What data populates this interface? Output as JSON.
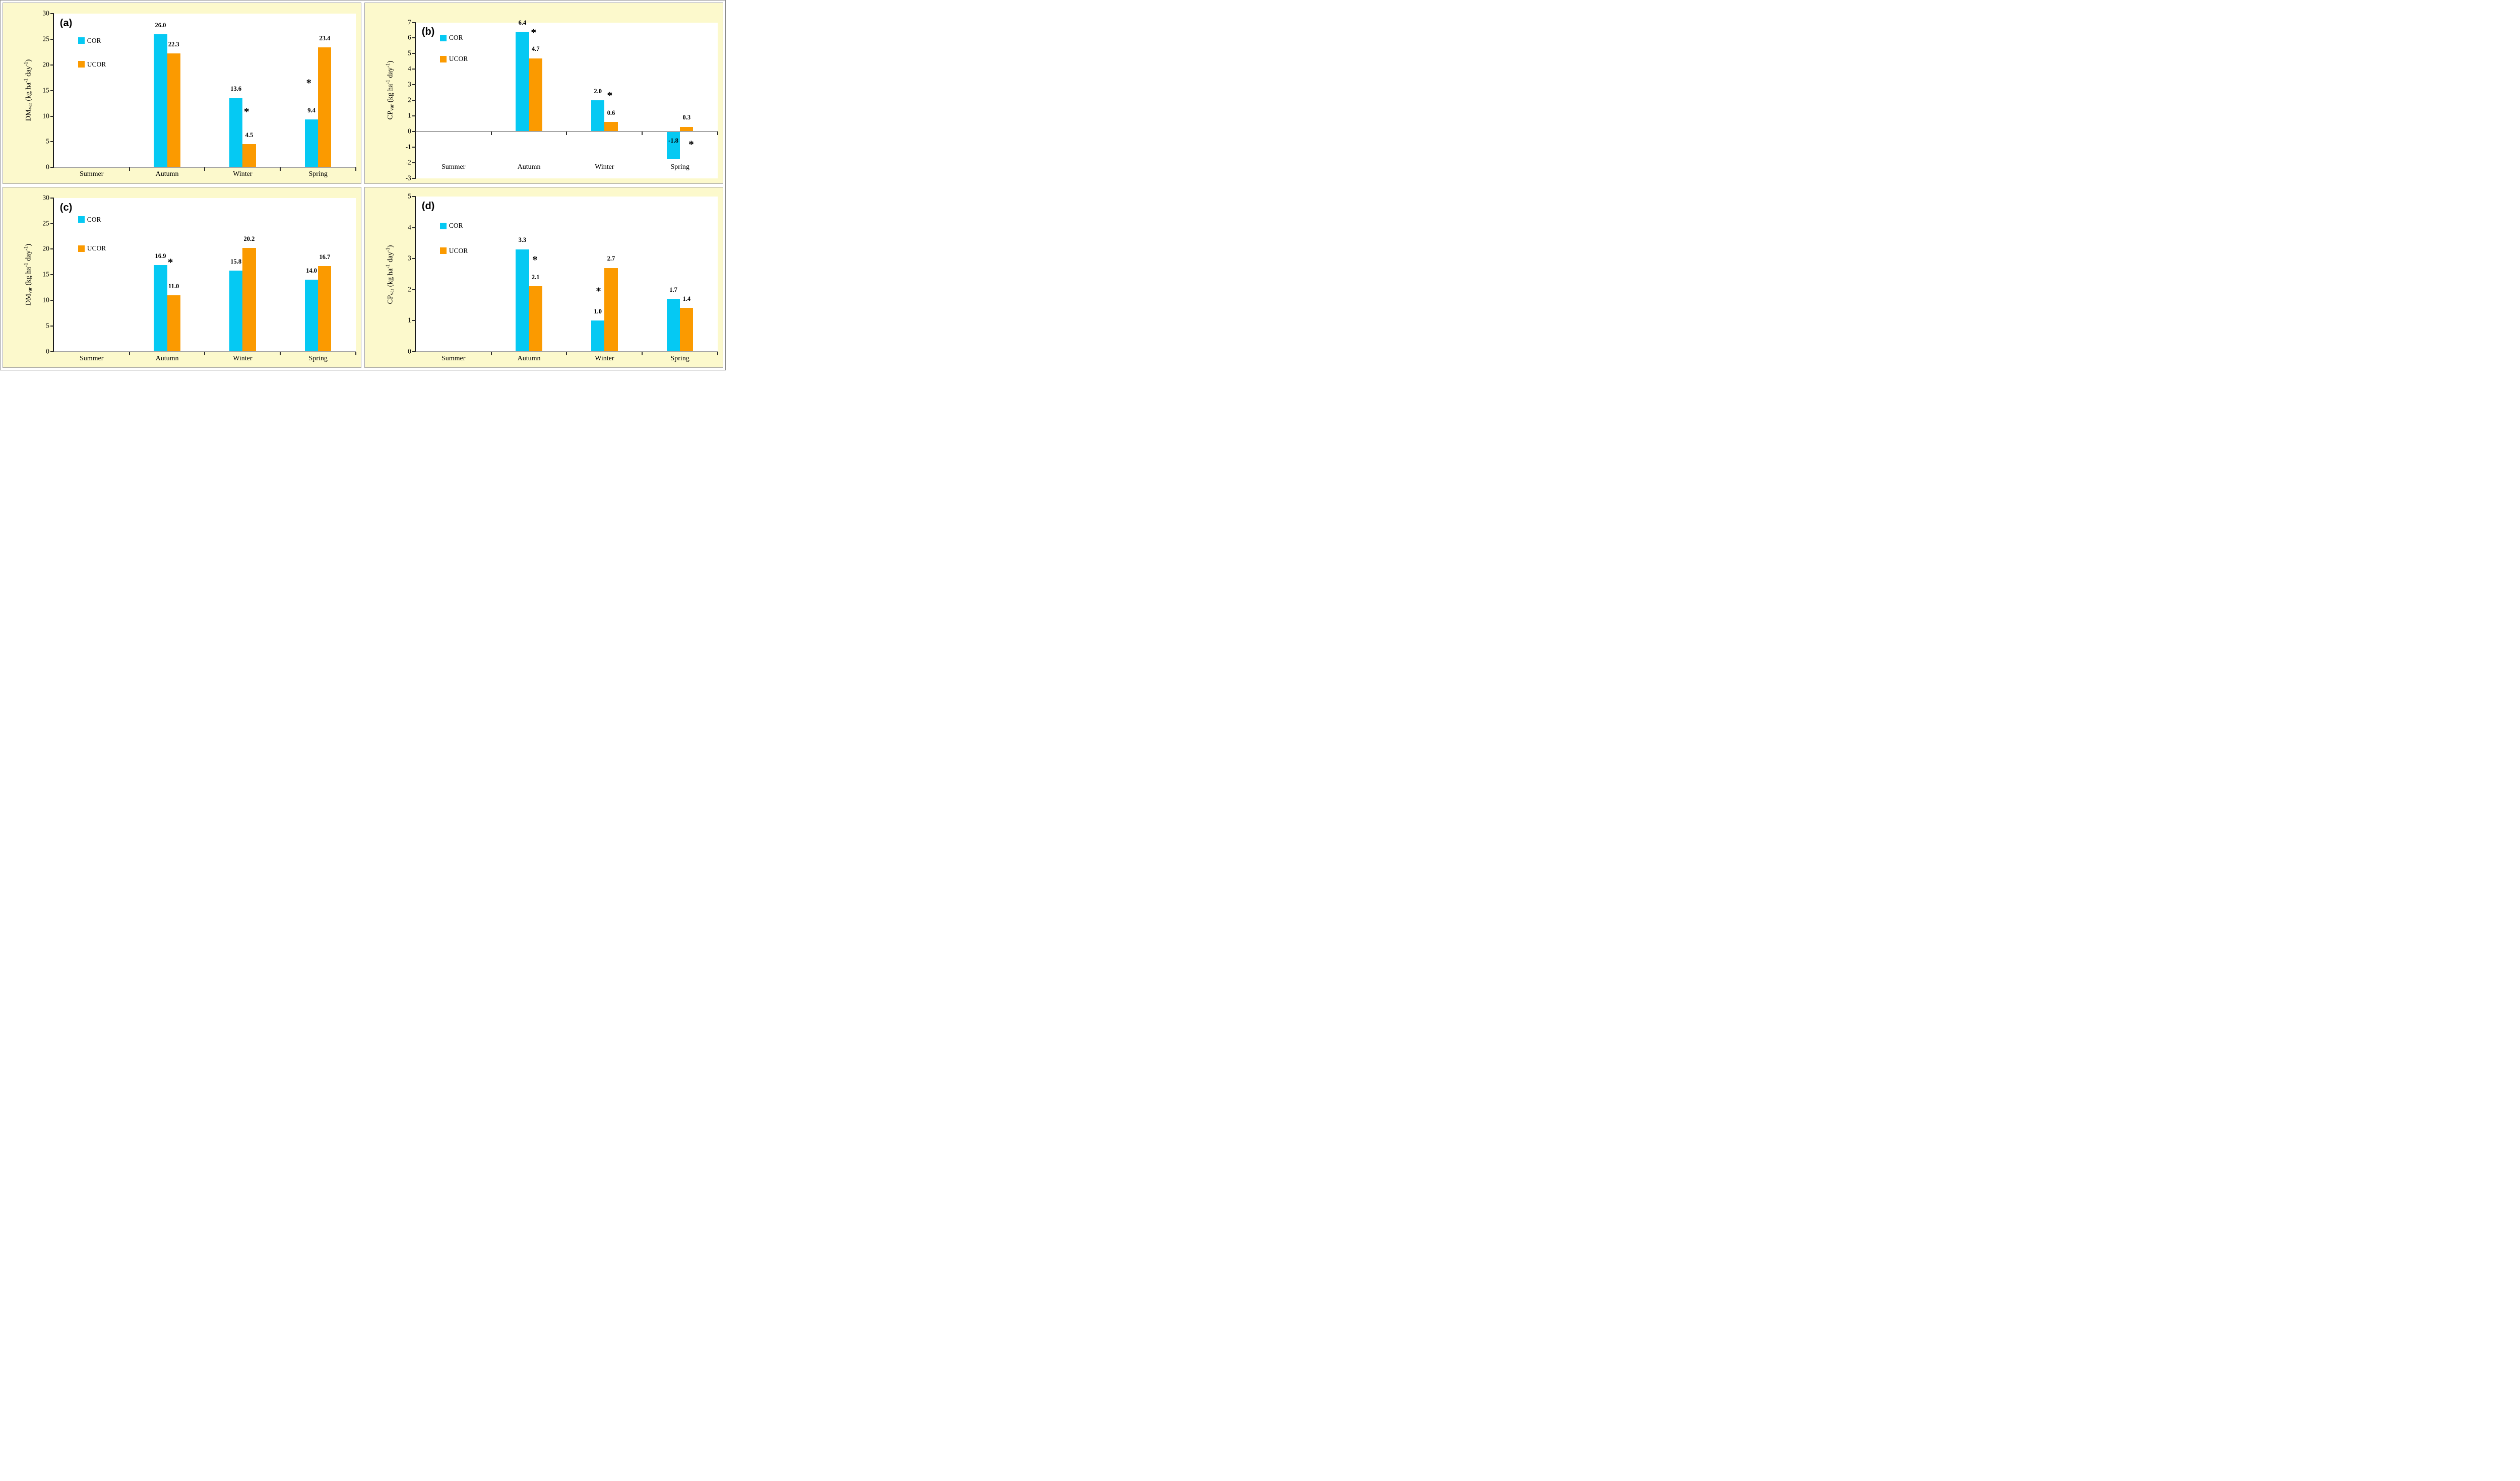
{
  "colors": {
    "cor": "#05C9F3",
    "ucor": "#FB9A00",
    "panel_bg": "#FCF9CC",
    "plot_bg": "#FFFFFF",
    "x_axis_line": "#A6A6A6",
    "y_axis_line": "#1A1A1A",
    "tick_mark": "#2B2B2B",
    "text": "#000000",
    "panel_border": "#A0A0A0"
  },
  "chart_data": [
    {
      "type": "bar",
      "letter": "(a)",
      "ylabel": {
        "name": "DM",
        "sub": "var",
        "rest1": " (kg ha",
        "sup1": "-1",
        "rest2": " day",
        "sup2": "-1",
        "rest3": ")"
      },
      "ylim": [
        0,
        30
      ],
      "yticks": [
        0,
        5,
        10,
        15,
        20,
        25,
        30
      ],
      "categories": [
        "Summer",
        "Autumn",
        "Winter",
        "Spring"
      ],
      "grid": false,
      "legend_position": "upper-left",
      "cat_label_y": null,
      "series": [
        {
          "name": "COR",
          "color_key": "cor",
          "values": [
            null,
            26.0,
            13.6,
            9.4
          ],
          "labels": [
            "",
            "26.0",
            "13.6",
            "9.4"
          ]
        },
        {
          "name": "UCOR",
          "color_key": "ucor",
          "values": [
            null,
            22.3,
            4.5,
            23.4
          ],
          "labels": [
            "",
            "22.3",
            "4.5",
            "23.4"
          ]
        }
      ],
      "asterisks": [
        {
          "text": "*",
          "cat": 2,
          "series": 1,
          "dx": -0.2,
          "y": 10.8
        },
        {
          "text": "*",
          "cat": 3,
          "series": 0,
          "dx": -0.2,
          "y": 16.5
        }
      ]
    },
    {
      "type": "bar",
      "letter": "(b)",
      "ylabel": {
        "name": "CP",
        "sub": "var",
        "rest1": " (kg ha",
        "sup1": "-1",
        "rest2": " day",
        "sup2": "-1",
        "rest3": ")"
      },
      "ylim": [
        -3,
        7
      ],
      "yticks": [
        -3,
        -2,
        -1,
        0,
        1,
        2,
        3,
        4,
        5,
        6,
        7
      ],
      "categories": [
        "Summer",
        "Autumn",
        "Winter",
        "Spring"
      ],
      "grid": false,
      "legend_position": "upper-left",
      "cat_label_y": -2.35,
      "series": [
        {
          "name": "COR",
          "color_key": "cor",
          "values": [
            null,
            6.4,
            2.0,
            -1.8
          ],
          "labels": [
            "",
            "6.4",
            "2.0",
            "-1.8"
          ]
        },
        {
          "name": "UCOR",
          "color_key": "ucor",
          "values": [
            null,
            4.7,
            0.6,
            0.3
          ],
          "labels": [
            "",
            "4.7",
            "0.6",
            "0.3"
          ]
        }
      ],
      "asterisks": [
        {
          "text": "*",
          "cat": 1,
          "series": 1,
          "dx": -0.15,
          "y": 6.35
        },
        {
          "text": "*",
          "cat": 2,
          "series": 1,
          "dx": -0.1,
          "y": 2.3
        },
        {
          "text": "*",
          "cat": 3,
          "series": 1,
          "dx": 0.35,
          "y": -0.85
        }
      ]
    },
    {
      "type": "bar",
      "letter": "(c)",
      "ylabel": {
        "name": "DM",
        "sub": "var",
        "rest1": " (kg ha",
        "sup1": "-1",
        "rest2": " day",
        "sup2": "-1",
        "rest3": ")"
      },
      "ylim": [
        0,
        30
      ],
      "yticks": [
        0,
        5,
        10,
        15,
        20,
        25,
        30
      ],
      "categories": [
        "Summer",
        "Autumn",
        "Winter",
        "Spring"
      ],
      "grid": false,
      "legend_position": "upper-left",
      "cat_label_y": null,
      "series": [
        {
          "name": "COR",
          "color_key": "cor",
          "values": [
            null,
            16.9,
            15.8,
            14.0
          ],
          "labels": [
            "",
            "16.9",
            "15.8",
            "14.0"
          ]
        },
        {
          "name": "UCOR",
          "color_key": "ucor",
          "values": [
            null,
            11.0,
            20.2,
            16.7
          ],
          "labels": [
            "",
            "11.0",
            "20.2",
            "16.7"
          ]
        }
      ],
      "asterisks": [
        {
          "text": "*",
          "cat": 1,
          "series": 1,
          "dx": -0.25,
          "y": 17.4
        }
      ]
    },
    {
      "type": "bar",
      "letter": "(d)",
      "ylabel": {
        "name": "CP",
        "sub": "var",
        "rest1": " (kg ha",
        "sup1": "-1",
        "rest2": " day",
        "sup2": "-1",
        "rest3": ")"
      },
      "ylim": [
        0,
        5
      ],
      "yticks": [
        0,
        1,
        2,
        3,
        4,
        5
      ],
      "categories": [
        "Summer",
        "Autumn",
        "Winter",
        "Spring"
      ],
      "grid": false,
      "legend_position": "upper-left",
      "cat_label_y": null,
      "series": [
        {
          "name": "COR",
          "color_key": "cor",
          "values": [
            null,
            3.3,
            1.0,
            1.7
          ],
          "labels": [
            "",
            "3.3",
            "1.0",
            "1.7"
          ]
        },
        {
          "name": "UCOR",
          "color_key": "ucor",
          "values": [
            null,
            2.1,
            2.7,
            1.4
          ],
          "labels": [
            "",
            "2.1",
            "2.7",
            "1.4"
          ]
        }
      ],
      "asterisks": [
        {
          "text": "*",
          "cat": 1,
          "series": 1,
          "dx": -0.05,
          "y": 2.95
        },
        {
          "text": "*",
          "cat": 2,
          "series": 0,
          "dx": 0.05,
          "y": 1.95
        }
      ]
    }
  ]
}
